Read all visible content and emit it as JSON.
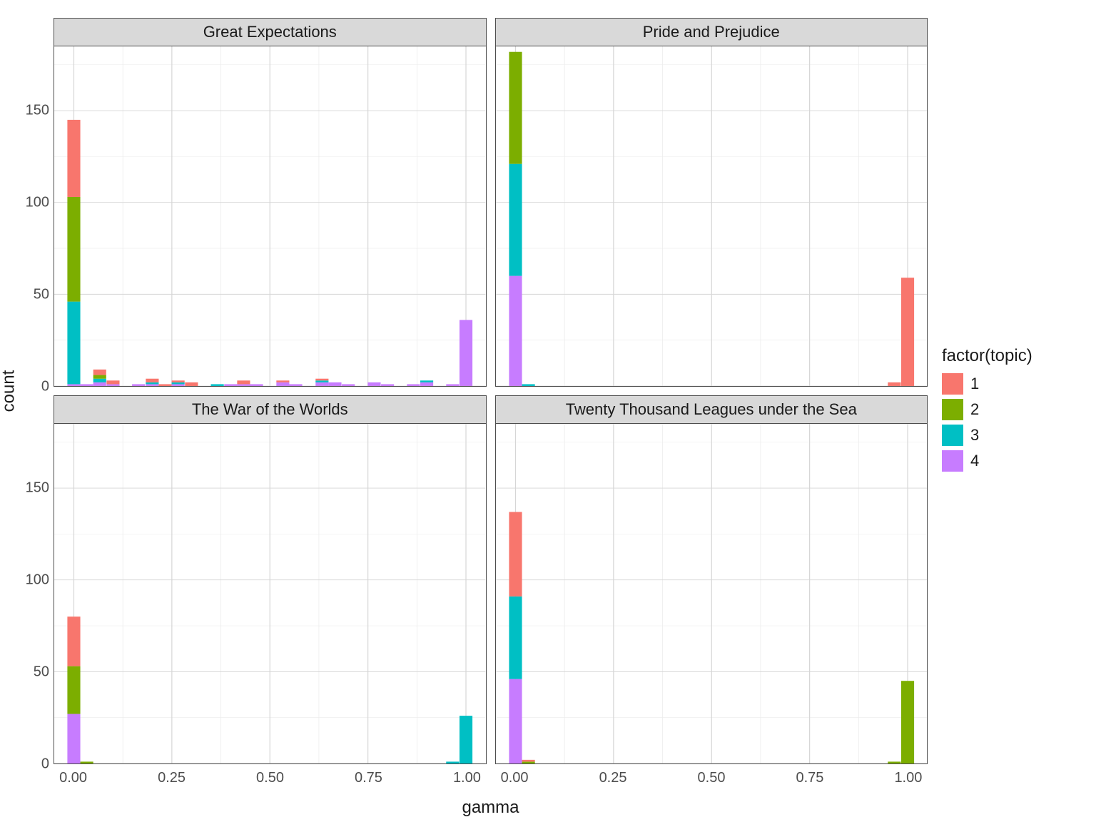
{
  "chart": {
    "type": "faceted-stacked-histogram",
    "xlabel": "gamma",
    "ylabel": "count",
    "xlabel_fontsize": 24,
    "ylabel_fontsize": 24,
    "facet_title_fontsize": 22,
    "tick_fontsize": 20,
    "xlim": [
      -0.05,
      1.05
    ],
    "ylim": [
      0,
      185
    ],
    "x_ticks": [
      0.0,
      0.25,
      0.5,
      0.75,
      1.0
    ],
    "x_tick_labels": [
      "0.00",
      "0.25",
      "0.50",
      "0.75",
      "1.00"
    ],
    "y_ticks": [
      0,
      50,
      100,
      150
    ],
    "y_tick_labels": [
      "0",
      "50",
      "100",
      "150"
    ],
    "grid_color": "#ebebeb",
    "grid_major_color": "#d6d6d6",
    "panel_border_color": "#4d4d4d",
    "background_color": "#ffffff",
    "strip_background": "#d9d9d9",
    "bin_width": 0.033,
    "legend": {
      "title": "factor(topic)",
      "items": [
        {
          "label": "1",
          "color": "#f8766d"
        },
        {
          "label": "2",
          "color": "#7cae00"
        },
        {
          "label": "3",
          "color": "#00bfc4"
        },
        {
          "label": "4",
          "color": "#c77cff"
        }
      ]
    },
    "facets": [
      {
        "title": "Great Expectations",
        "bars": [
          {
            "x": 0.0,
            "segments": [
              {
                "topic": "4",
                "h": 1
              },
              {
                "topic": "3",
                "h": 45
              },
              {
                "topic": "2",
                "h": 57
              },
              {
                "topic": "1",
                "h": 42
              }
            ]
          },
          {
            "x": 0.033,
            "segments": [
              {
                "topic": "4",
                "h": 1
              }
            ]
          },
          {
            "x": 0.066,
            "segments": [
              {
                "topic": "4",
                "h": 2
              },
              {
                "topic": "3",
                "h": 2
              },
              {
                "topic": "2",
                "h": 2
              },
              {
                "topic": "1",
                "h": 3
              }
            ]
          },
          {
            "x": 0.1,
            "segments": [
              {
                "topic": "4",
                "h": 1
              },
              {
                "topic": "1",
                "h": 2
              }
            ]
          },
          {
            "x": 0.165,
            "segments": [
              {
                "topic": "4",
                "h": 1
              }
            ]
          },
          {
            "x": 0.2,
            "segments": [
              {
                "topic": "4",
                "h": 1
              },
              {
                "topic": "3",
                "h": 1
              },
              {
                "topic": "1",
                "h": 2
              }
            ]
          },
          {
            "x": 0.233,
            "segments": [
              {
                "topic": "1",
                "h": 1
              }
            ]
          },
          {
            "x": 0.266,
            "segments": [
              {
                "topic": "4",
                "h": 1
              },
              {
                "topic": "3",
                "h": 1
              },
              {
                "topic": "1",
                "h": 1
              }
            ]
          },
          {
            "x": 0.3,
            "segments": [
              {
                "topic": "1",
                "h": 2
              }
            ]
          },
          {
            "x": 0.366,
            "segments": [
              {
                "topic": "3",
                "h": 1
              }
            ]
          },
          {
            "x": 0.4,
            "segments": [
              {
                "topic": "4",
                "h": 1
              }
            ]
          },
          {
            "x": 0.433,
            "segments": [
              {
                "topic": "4",
                "h": 1
              },
              {
                "topic": "1",
                "h": 2
              }
            ]
          },
          {
            "x": 0.466,
            "segments": [
              {
                "topic": "4",
                "h": 1
              }
            ]
          },
          {
            "x": 0.533,
            "segments": [
              {
                "topic": "4",
                "h": 2
              },
              {
                "topic": "1",
                "h": 1
              }
            ]
          },
          {
            "x": 0.566,
            "segments": [
              {
                "topic": "4",
                "h": 1
              }
            ]
          },
          {
            "x": 0.633,
            "segments": [
              {
                "topic": "4",
                "h": 2
              },
              {
                "topic": "3",
                "h": 1
              },
              {
                "topic": "1",
                "h": 1
              }
            ]
          },
          {
            "x": 0.666,
            "segments": [
              {
                "topic": "4",
                "h": 2
              }
            ]
          },
          {
            "x": 0.7,
            "segments": [
              {
                "topic": "4",
                "h": 1
              }
            ]
          },
          {
            "x": 0.766,
            "segments": [
              {
                "topic": "4",
                "h": 2
              }
            ]
          },
          {
            "x": 0.8,
            "segments": [
              {
                "topic": "4",
                "h": 1
              }
            ]
          },
          {
            "x": 0.866,
            "segments": [
              {
                "topic": "4",
                "h": 1
              }
            ]
          },
          {
            "x": 0.9,
            "segments": [
              {
                "topic": "4",
                "h": 2
              },
              {
                "topic": "3",
                "h": 1
              }
            ]
          },
          {
            "x": 0.966,
            "segments": [
              {
                "topic": "4",
                "h": 1
              }
            ]
          },
          {
            "x": 1.0,
            "segments": [
              {
                "topic": "4",
                "h": 36
              }
            ]
          }
        ]
      },
      {
        "title": "Pride and Prejudice",
        "bars": [
          {
            "x": 0.0,
            "segments": [
              {
                "topic": "4",
                "h": 60
              },
              {
                "topic": "3",
                "h": 61
              },
              {
                "topic": "2",
                "h": 61
              }
            ]
          },
          {
            "x": 0.033,
            "segments": [
              {
                "topic": "3",
                "h": 1
              }
            ]
          },
          {
            "x": 0.966,
            "segments": [
              {
                "topic": "1",
                "h": 2
              }
            ]
          },
          {
            "x": 1.0,
            "segments": [
              {
                "topic": "1",
                "h": 59
              }
            ]
          }
        ]
      },
      {
        "title": "The War of the Worlds",
        "bars": [
          {
            "x": 0.0,
            "segments": [
              {
                "topic": "4",
                "h": 27
              },
              {
                "topic": "2",
                "h": 26
              },
              {
                "topic": "1",
                "h": 27
              }
            ]
          },
          {
            "x": 0.033,
            "segments": [
              {
                "topic": "2",
                "h": 1
              }
            ]
          },
          {
            "x": 0.966,
            "segments": [
              {
                "topic": "3",
                "h": 1
              }
            ]
          },
          {
            "x": 1.0,
            "segments": [
              {
                "topic": "3",
                "h": 26
              }
            ]
          }
        ]
      },
      {
        "title": "Twenty Thousand Leagues under the Sea",
        "bars": [
          {
            "x": 0.0,
            "segments": [
              {
                "topic": "4",
                "h": 46
              },
              {
                "topic": "3",
                "h": 45
              },
              {
                "topic": "1",
                "h": 46
              }
            ]
          },
          {
            "x": 0.033,
            "segments": [
              {
                "topic": "2",
                "h": 1
              },
              {
                "topic": "1",
                "h": 1
              }
            ]
          },
          {
            "x": 0.966,
            "segments": [
              {
                "topic": "2",
                "h": 1
              }
            ]
          },
          {
            "x": 1.0,
            "segments": [
              {
                "topic": "2",
                "h": 45
              }
            ]
          }
        ]
      }
    ]
  }
}
